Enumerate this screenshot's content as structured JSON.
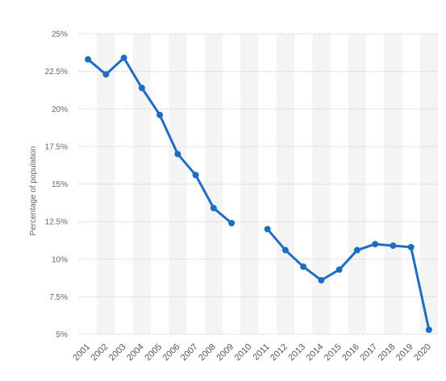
{
  "chart_data": {
    "type": "line",
    "title": "",
    "xlabel": "",
    "ylabel": "Percentage of population",
    "ylim": [
      5,
      25
    ],
    "yticks": [
      "25%",
      "22.5%",
      "20%",
      "17.5%",
      "15%",
      "12.5%",
      "10%",
      "7.5%",
      "5%"
    ],
    "ytick_values": [
      25,
      22.5,
      20,
      17.5,
      15,
      12.5,
      10,
      7.5,
      5
    ],
    "x": [
      "2001",
      "2002",
      "2003",
      "2004",
      "2005",
      "2006",
      "2007",
      "2008",
      "2009",
      "2010",
      "2011",
      "2012",
      "2013",
      "2014",
      "2015",
      "2016",
      "2017",
      "2018",
      "2019",
      "2020"
    ],
    "series": [
      {
        "values": [
          23.3,
          22.3,
          23.4,
          21.4,
          19.6,
          17.0,
          15.6,
          13.4,
          12.4,
          null,
          12.0,
          10.6,
          9.5,
          8.6,
          9.3,
          10.6,
          11.0,
          10.9,
          10.8,
          5.3
        ]
      }
    ],
    "colors": {
      "line": "#1e6dc5",
      "grid": "#c8c8c8",
      "band": "#f4f4f4"
    },
    "grid": true,
    "legend": "none"
  }
}
